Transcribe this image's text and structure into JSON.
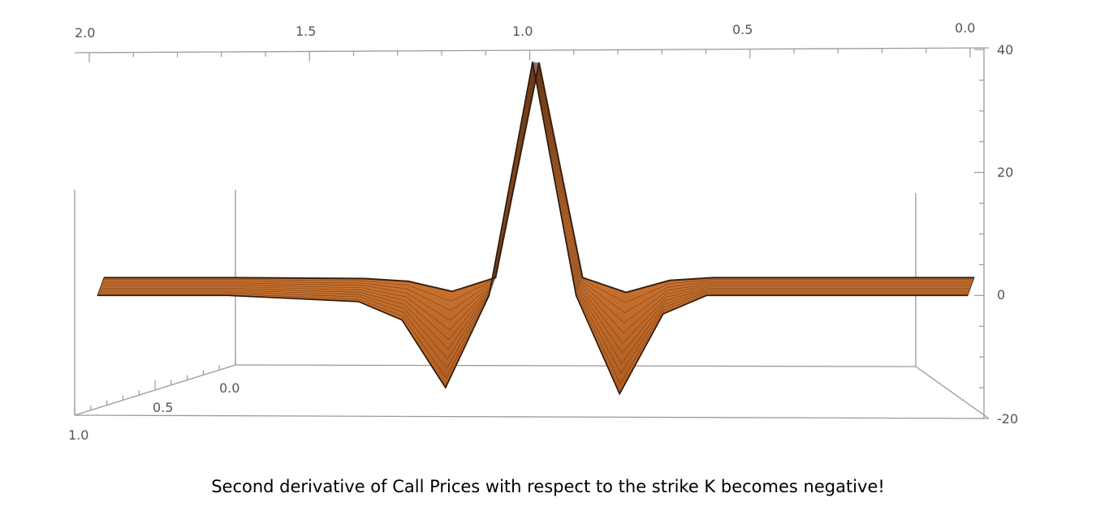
{
  "chart_data": {
    "type": "surface3d",
    "caption": "Second derivative of Call Prices with respect to the strike K becomes negative!",
    "top_axis_ticks": [
      "2.0",
      "1.5",
      "1.0",
      "0.5",
      "0.0"
    ],
    "depth_axis_ticks": [
      "0.0",
      "0.5",
      "1.0"
    ],
    "z_axis_ticks": [
      "40",
      "20",
      "0",
      "-20"
    ],
    "x_range": [
      2.0,
      0.0
    ],
    "depth_range": [
      0.0,
      1.0
    ],
    "z_range": [
      -20,
      40
    ],
    "surface_profile_front": {
      "x": [
        2.0,
        1.7,
        1.4,
        1.3,
        1.2,
        1.1,
        1.0,
        0.9,
        0.8,
        0.7,
        0.6,
        0.4,
        0.2,
        0.1,
        0.0
      ],
      "z": [
        0,
        0,
        -1,
        -4,
        -15,
        0,
        38,
        0,
        -16,
        -3,
        0,
        0,
        0,
        0,
        0
      ]
    },
    "surface_color": "#c8702a",
    "mesh_color": "#3a2010",
    "box_color": "#999999",
    "grid": false
  }
}
